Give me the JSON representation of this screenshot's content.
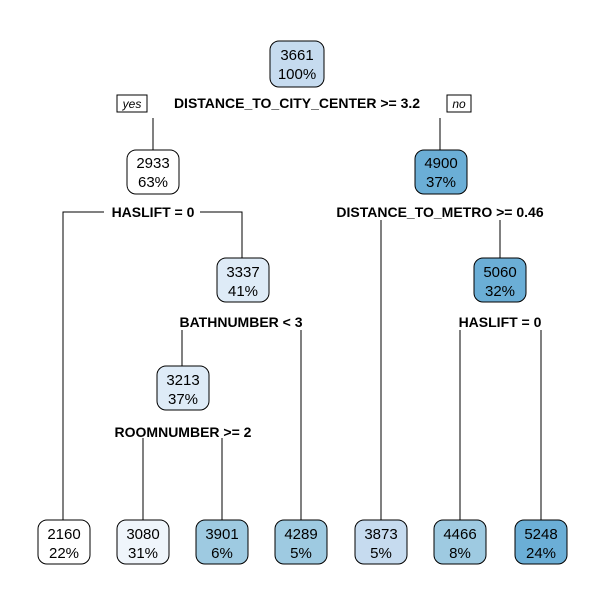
{
  "tags": {
    "yes": "yes",
    "no": "no"
  },
  "nodes": {
    "root": {
      "value": "3661",
      "pct": "100%",
      "color": "#c6dbef",
      "split": "DISTANCE_TO_CITY_CENTER >= 3.2"
    },
    "n2": {
      "value": "2933",
      "pct": "63%",
      "color": "#ffffff",
      "split": "HASLIFT = 0"
    },
    "n3": {
      "value": "4900",
      "pct": "37%",
      "color": "#6baed6",
      "split": "DISTANCE_TO_METRO >= 0.46"
    },
    "n5": {
      "value": "3337",
      "pct": "41%",
      "color": "#deebf7",
      "split": "BATHNUMBER < 3"
    },
    "n7": {
      "value": "5060",
      "pct": "32%",
      "color": "#6baed6",
      "split": "HASLIFT = 0"
    },
    "n10": {
      "value": "3213",
      "pct": "37%",
      "color": "#deebf7",
      "split": "ROOMNUMBER >= 2"
    },
    "leaf4": {
      "value": "2160",
      "pct": "22%",
      "color": "#ffffff"
    },
    "leaf20": {
      "value": "3080",
      "pct": "31%",
      "color": "#eff5fb"
    },
    "leaf21": {
      "value": "3901",
      "pct": "6%",
      "color": "#9ecae1"
    },
    "leaf11": {
      "value": "4289",
      "pct": "5%",
      "color": "#9ecae1"
    },
    "leaf6": {
      "value": "3873",
      "pct": "5%",
      "color": "#c6dbef"
    },
    "leaf14": {
      "value": "4466",
      "pct": "8%",
      "color": "#9ecae1"
    },
    "leaf15": {
      "value": "5248",
      "pct": "24%",
      "color": "#6baed6"
    }
  }
}
